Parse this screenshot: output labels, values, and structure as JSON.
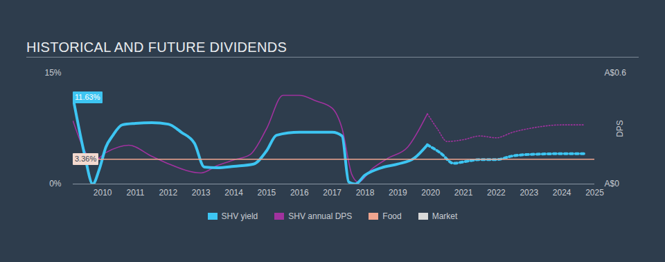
{
  "chart_data": {
    "type": "line",
    "title": "HISTORICAL AND FUTURE DIVIDENDS",
    "xlim": [
      2009.1,
      2025
    ],
    "xticks": [
      2010,
      2011,
      2012,
      2013,
      2014,
      2015,
      2016,
      2017,
      2018,
      2019,
      2020,
      2021,
      2022,
      2023,
      2024,
      2025
    ],
    "ylim": [
      0,
      15
    ],
    "yticks": [
      {
        "value": 0,
        "label": "0%"
      },
      {
        "value": 15,
        "label": "15%"
      }
    ],
    "y2lim": [
      0,
      0.6
    ],
    "y2ticks": [
      {
        "value": 0,
        "label": "A$0"
      },
      {
        "value": 0.6,
        "label": "A$0.6"
      }
    ],
    "y2label": "DPS",
    "grid": false,
    "legend": "bottom",
    "series": [
      {
        "name": "SHV yield",
        "color": "#3dc5f2",
        "type": "line",
        "line_style": "solid",
        "x": [
          2009.1,
          2009.45,
          2009.7,
          2009.9,
          2010.1,
          2010.3,
          2010.6,
          2011,
          2011.5,
          2012,
          2012.4,
          2012.8,
          2013.1,
          2013.5,
          2014,
          2014.6,
          2015,
          2015.3,
          2016,
          2017,
          2017.3,
          2017.5,
          2017.7,
          2018,
          2018.5,
          2019,
          2019.5,
          2019.9
        ],
        "values": [
          11.63,
          4,
          0,
          2,
          5,
          6.5,
          8,
          8.2,
          8.3,
          8.1,
          7,
          5.5,
          2.3,
          2.2,
          2.4,
          2.7,
          4.5,
          6.6,
          7,
          7,
          6.5,
          0.3,
          0,
          1.2,
          2.2,
          2.7,
          3.5,
          5.3
        ]
      },
      {
        "name": "SHV yield",
        "color": "#3dc5f2",
        "type": "line",
        "line_style": "dotted",
        "x": [
          2019.9,
          2020.3,
          2020.7,
          2021,
          2021.5,
          2022,
          2022.5,
          2023,
          2024,
          2024.7
        ],
        "values": [
          5.3,
          4.2,
          2.8,
          3.0,
          3.3,
          3.3,
          3.8,
          4.0,
          4.1,
          4.1
        ]
      },
      {
        "name": "SHV annual DPS",
        "color": "#a0329e",
        "type": "line",
        "line_style": "solid",
        "axis": "y2",
        "x": [
          2009.1,
          2009.4,
          2009.7,
          2010.1,
          2010.8,
          2011.5,
          2012,
          2013,
          2013.5,
          2014,
          2014.5,
          2015,
          2015.5,
          2016,
          2016.5,
          2017,
          2017.3,
          2017.6,
          2017.8,
          2018.2,
          2018.7,
          2019.3,
          2019.9
        ],
        "values": [
          0.34,
          0.2,
          0.12,
          0.17,
          0.21,
          0.15,
          0.11,
          0.06,
          0.1,
          0.13,
          0.16,
          0.3,
          0.48,
          0.48,
          0.45,
          0.41,
          0.3,
          0.05,
          0.01,
          0.08,
          0.14,
          0.2,
          0.38
        ]
      },
      {
        "name": "SHV annual DPS",
        "color": "#a0329e",
        "type": "line",
        "line_style": "dotted",
        "axis": "y2",
        "x": [
          2019.9,
          2020.2,
          2020.5,
          2021,
          2021.5,
          2022,
          2022.5,
          2023,
          2024,
          2024.7
        ],
        "values": [
          0.38,
          0.3,
          0.23,
          0.24,
          0.26,
          0.25,
          0.28,
          0.3,
          0.32,
          0.32
        ]
      },
      {
        "name": "Food",
        "color": "#f0a58f",
        "type": "line",
        "line_style": "solid",
        "x": [
          2009.1,
          2025
        ],
        "values": [
          3.36,
          3.36
        ]
      },
      {
        "name": "Market",
        "color": "#d9d9d9",
        "type": "line",
        "line_style": "solid",
        "x": [],
        "values": []
      }
    ],
    "annotations": [
      {
        "text": "11.63%",
        "x": 2009.1,
        "y": 11.63,
        "color": "#3dc5f2"
      },
      {
        "text": "3.36%",
        "x": 2009.1,
        "y": 3.36,
        "color": "#f3d9cf"
      }
    ]
  }
}
